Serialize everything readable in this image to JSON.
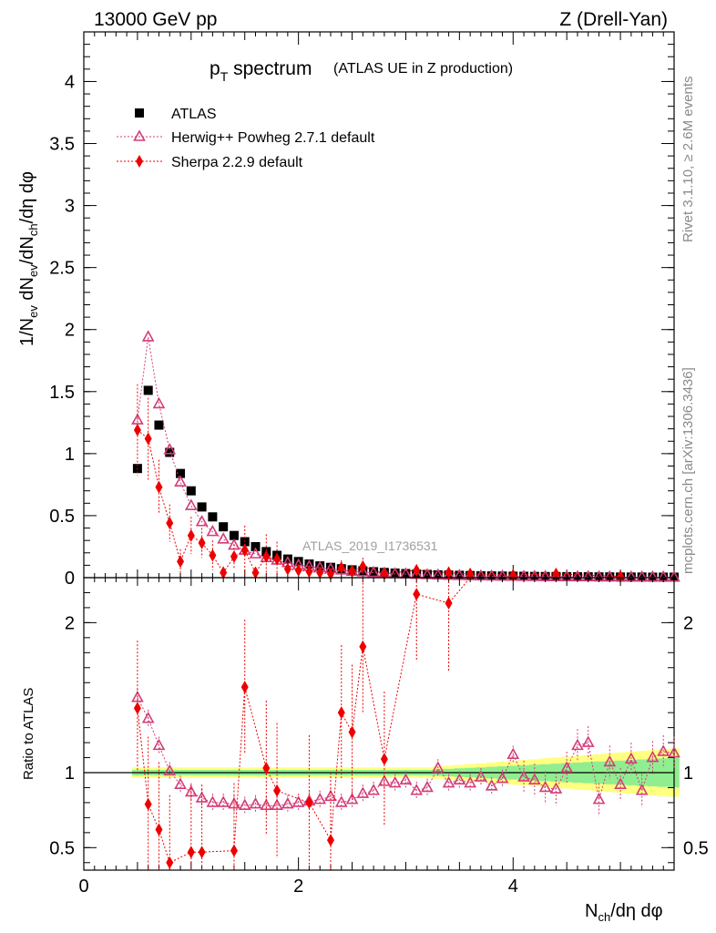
{
  "header": {
    "left": "13000 GeV pp",
    "right": "Z (Drell-Yan)"
  },
  "title": {
    "main_p": "p",
    "main_sub": "T",
    "main_rest": " spectrum",
    "paren": "(ATLAS UE in Z production)"
  },
  "side": {
    "rivet": "Rivet 3.1.10, ≥ 2.6M events",
    "mcplots": "mcplots.cern.ch [arXiv:1306.3436]"
  },
  "watermark": "ATLAS_2019_I1736531",
  "axes": {
    "ylabel_top": "1/N_ev dN_ev/dN_ch/dη dφ",
    "ylabel_bottom": "Ratio to ATLAS",
    "xlabel": "N_ch/dη dφ"
  },
  "chart_data": [
    {
      "type": "scatter",
      "panel": "main",
      "xlim": [
        0,
        5.5
      ],
      "ylim": [
        0,
        4.4
      ],
      "xticks": [
        0,
        2,
        4
      ],
      "yticks": [
        0,
        0.5,
        1,
        1.5,
        2,
        2.5,
        3,
        3.5,
        4
      ],
      "ytick_labels": [
        "0",
        "0.5",
        "1",
        "1.5",
        "2",
        "2.5",
        "3",
        "3.5",
        "4"
      ],
      "legend_position": "top-left",
      "series": [
        {
          "name": "ATLAS",
          "color": "#000000",
          "marker": "square",
          "x": [
            0.5,
            0.6,
            0.7,
            0.8,
            0.9,
            1.0,
            1.1,
            1.2,
            1.3,
            1.4,
            1.5,
            1.6,
            1.7,
            1.8,
            1.9,
            2.0,
            2.1,
            2.2,
            2.3,
            2.4,
            2.5,
            2.6,
            2.7,
            2.8,
            2.9,
            3.0,
            3.1,
            3.2,
            3.3,
            3.4,
            3.5,
            3.6,
            3.7,
            3.8,
            3.9,
            4.0,
            4.1,
            4.2,
            4.3,
            4.4,
            4.5,
            4.6,
            4.7,
            4.8,
            4.9,
            5.0,
            5.1,
            5.2,
            5.3,
            5.4,
            5.5
          ],
          "y": [
            0.88,
            1.51,
            1.23,
            1.01,
            0.84,
            0.7,
            0.57,
            0.49,
            0.41,
            0.34,
            0.29,
            0.25,
            0.21,
            0.18,
            0.15,
            0.13,
            0.11,
            0.095,
            0.083,
            0.072,
            0.063,
            0.055,
            0.048,
            0.042,
            0.037,
            0.033,
            0.029,
            0.026,
            0.023,
            0.021,
            0.019,
            0.017,
            0.015,
            0.014,
            0.013,
            0.012,
            0.011,
            0.01,
            0.009,
            0.009,
            0.008,
            0.007,
            0.007,
            0.006,
            0.006,
            0.005,
            0.005,
            0.005,
            0.004,
            0.004,
            0.004
          ]
        },
        {
          "name": "Herwig++ Powheg 2.7.1 default",
          "color": "#d23c78",
          "marker": "triangle",
          "x": [
            0.5,
            0.6,
            0.7,
            0.8,
            0.9,
            1.0,
            1.1,
            1.2,
            1.3,
            1.4,
            1.5,
            1.6,
            1.7,
            1.8,
            1.9,
            2.0,
            2.1,
            2.2,
            2.3,
            2.4,
            2.5,
            2.6,
            2.7,
            2.8,
            2.9,
            3.0,
            3.1,
            3.2,
            3.3,
            3.4,
            3.5,
            3.6,
            3.7,
            3.8,
            3.9,
            4.0,
            4.1,
            4.2,
            4.3,
            4.4,
            4.5,
            4.6,
            4.7,
            4.8,
            4.9,
            5.0,
            5.1,
            5.2,
            5.3,
            5.4,
            5.5
          ],
          "y": [
            1.27,
            1.94,
            1.4,
            1.03,
            0.77,
            0.58,
            0.45,
            0.37,
            0.31,
            0.26,
            0.22,
            0.19,
            0.16,
            0.14,
            0.12,
            0.1,
            0.09,
            0.08,
            0.07,
            0.06,
            0.05,
            0.045,
            0.04,
            0.035,
            0.03,
            0.028,
            0.025,
            0.022,
            0.02,
            0.018,
            0.016,
            0.015,
            0.013,
            0.012,
            0.011,
            0.01,
            0.009,
            0.009,
            0.008,
            0.007,
            0.007,
            0.006,
            0.006,
            0.005,
            0.005,
            0.005,
            0.004,
            0.004,
            0.004,
            0.004,
            0.003
          ]
        },
        {
          "name": "Sherpa 2.2.9 default",
          "color": "#ee0000",
          "marker": "diamond",
          "x": [
            0.5,
            0.6,
            0.7,
            0.8,
            0.9,
            1.0,
            1.1,
            1.2,
            1.3,
            1.4,
            1.5,
            1.6,
            1.7,
            1.8,
            1.9,
            2.0,
            2.1,
            2.2,
            2.3,
            2.4,
            2.5,
            2.6,
            2.8,
            3.1,
            3.4,
            3.6,
            4.0,
            4.4,
            5.0
          ],
          "y": [
            1.19,
            1.12,
            0.73,
            0.44,
            0.13,
            0.34,
            0.28,
            0.18,
            0.04,
            0.17,
            0.22,
            0.04,
            0.17,
            0.15,
            0.07,
            0.06,
            0.05,
            0.04,
            0.03,
            0.08,
            0.05,
            0.09,
            0.03,
            0.06,
            0.04,
            0.03,
            0.02,
            0.03,
            0.01
          ]
        }
      ]
    },
    {
      "type": "scatter",
      "panel": "ratio",
      "xlim": [
        0,
        5.5
      ],
      "ylim": [
        0.35,
        2.3
      ],
      "xticks": [
        0,
        2,
        4
      ],
      "xtick_labels": [
        "0",
        "2",
        "4"
      ],
      "yticks": [
        0.5,
        1,
        2
      ],
      "ytick_labels": [
        "0.5",
        "1",
        "2"
      ],
      "series": [
        {
          "name": "Herwig++ Powheg 2.7.1 default",
          "color": "#d23c78",
          "marker": "triangle",
          "x": [
            0.5,
            0.6,
            0.7,
            0.8,
            0.9,
            1.0,
            1.1,
            1.2,
            1.3,
            1.4,
            1.5,
            1.6,
            1.7,
            1.8,
            1.9,
            2.0,
            2.1,
            2.2,
            2.3,
            2.4,
            2.5,
            2.6,
            2.7,
            2.8,
            2.9,
            3.0,
            3.1,
            3.2,
            3.3,
            3.4,
            3.5,
            3.6,
            3.7,
            3.8,
            3.9,
            4.0,
            4.1,
            4.2,
            4.3,
            4.4,
            4.5,
            4.6,
            4.7,
            4.8,
            4.9,
            5.0,
            5.1,
            5.2,
            5.3,
            5.4,
            5.5
          ],
          "y": [
            1.5,
            1.36,
            1.18,
            1.01,
            0.92,
            0.87,
            0.83,
            0.8,
            0.8,
            0.79,
            0.78,
            0.79,
            0.78,
            0.78,
            0.79,
            0.8,
            0.81,
            0.82,
            0.84,
            0.8,
            0.82,
            0.86,
            0.88,
            0.94,
            0.93,
            0.95,
            0.88,
            0.9,
            1.03,
            0.93,
            0.95,
            0.93,
            0.97,
            0.91,
            0.96,
            1.12,
            0.97,
            0.95,
            0.9,
            0.89,
            1.03,
            1.18,
            1.2,
            0.82,
            1.07,
            0.92,
            1.09,
            0.88,
            1.1,
            1.14,
            1.13
          ]
        },
        {
          "name": "Sherpa 2.2.9 default",
          "color": "#ee0000",
          "marker": "diamond",
          "x": [
            0.5,
            0.6,
            0.7,
            0.8,
            1.0,
            1.1,
            1.4,
            1.5,
            1.7,
            1.8,
            2.1,
            2.3,
            2.4,
            2.5,
            2.6,
            2.8,
            3.1,
            3.4
          ],
          "y": [
            1.43,
            0.79,
            0.62,
            0.4,
            0.47,
            0.47,
            0.48,
            1.57,
            1.03,
            0.88,
            0.8,
            0.55,
            1.4,
            1.27,
            1.84,
            1.09,
            2.19,
            2.13
          ]
        }
      ],
      "bands": [
        {
          "name": "stat",
          "color": "#90ee90"
        },
        {
          "name": "syst",
          "color": "#ffff80"
        }
      ]
    }
  ]
}
